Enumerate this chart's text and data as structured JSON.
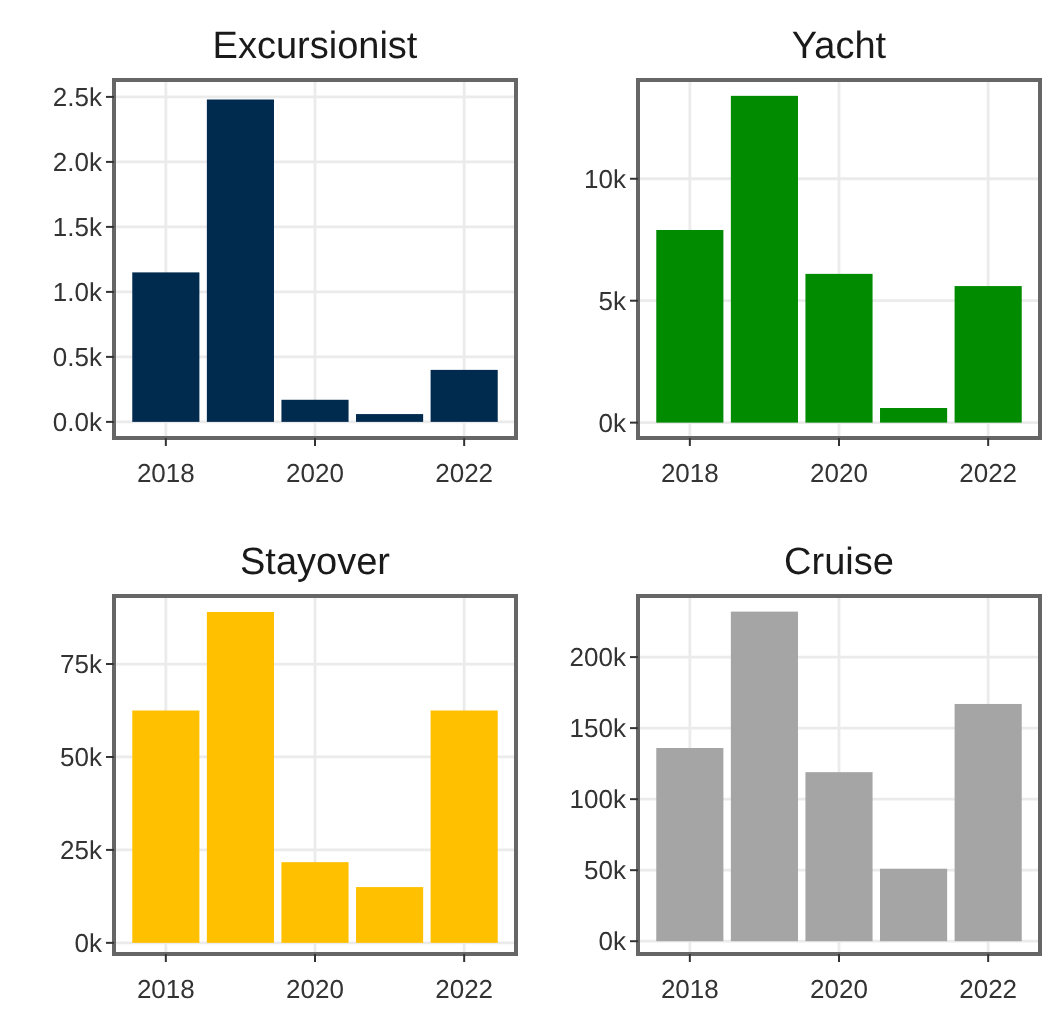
{
  "chart_data": [
    {
      "type": "bar",
      "title": "Excursionist",
      "x": [
        2018,
        2019,
        2020,
        2021,
        2022
      ],
      "values": [
        1150,
        2480,
        170,
        60,
        400
      ],
      "color": "#002a4e",
      "xlim": [
        2017.305,
        2022.695
      ],
      "xticks": [
        2018,
        2020,
        2022
      ],
      "ylim": [
        -124,
        2630
      ],
      "yticks": [
        {
          "value": 0,
          "label": "0.0k"
        },
        {
          "value": 500,
          "label": "0.5k"
        },
        {
          "value": 1000,
          "label": "1.0k"
        },
        {
          "value": 1500,
          "label": "1.5k"
        },
        {
          "value": 2000,
          "label": "2.0k"
        },
        {
          "value": 2500,
          "label": "2.5k"
        }
      ],
      "grid": true
    },
    {
      "type": "bar",
      "title": "Yacht",
      "x": [
        2018,
        2019,
        2020,
        2021,
        2022
      ],
      "values": [
        7900,
        13400,
        6100,
        600,
        5600
      ],
      "color": "#008b00",
      "xlim": [
        2017.305,
        2022.695
      ],
      "xticks": [
        2018,
        2020,
        2022
      ],
      "ylim": [
        -630,
        14050
      ],
      "yticks": [
        {
          "value": 0,
          "label": "0k"
        },
        {
          "value": 5000,
          "label": "5k"
        },
        {
          "value": 10000,
          "label": "10k"
        }
      ],
      "grid": true
    },
    {
      "type": "bar",
      "title": "Stayover",
      "x": [
        2018,
        2019,
        2020,
        2021,
        2022
      ],
      "values": [
        62500,
        89000,
        21700,
        15000,
        62500
      ],
      "color": "#ffc000",
      "xlim": [
        2017.305,
        2022.695
      ],
      "xticks": [
        2018,
        2020,
        2022
      ],
      "ylim": [
        -3000,
        93300
      ],
      "yticks": [
        {
          "value": 0,
          "label": "0k"
        },
        {
          "value": 25000,
          "label": "25k"
        },
        {
          "value": 50000,
          "label": "50k"
        },
        {
          "value": 75000,
          "label": "75k"
        }
      ],
      "grid": true
    },
    {
      "type": "bar",
      "title": "Cruise",
      "x": [
        2018,
        2019,
        2020,
        2021,
        2022
      ],
      "values": [
        136000,
        232000,
        119000,
        51000,
        167000
      ],
      "color": "#a5a5a5",
      "xlim": [
        2017.305,
        2022.695
      ],
      "xticks": [
        2018,
        2020,
        2022
      ],
      "ylim": [
        -9000,
        243000
      ],
      "yticks": [
        {
          "value": 0,
          "label": "0k"
        },
        {
          "value": 50000,
          "label": "50k"
        },
        {
          "value": 100000,
          "label": "100k"
        },
        {
          "value": 150000,
          "label": "150k"
        },
        {
          "value": 200000,
          "label": "200k"
        }
      ],
      "grid": true
    }
  ]
}
